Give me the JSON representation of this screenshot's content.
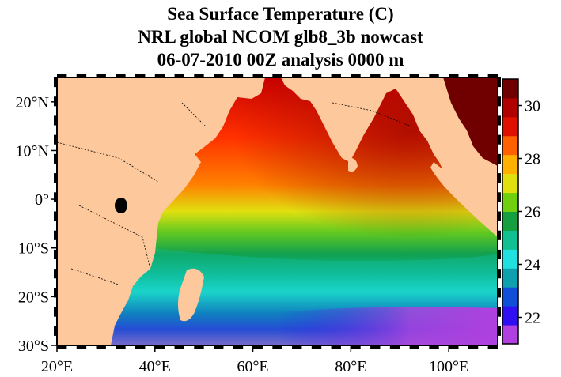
{
  "title": {
    "line1": "Sea Surface Temperature (C)",
    "line2": "NRL global NCOM glb8_3b   nowcast",
    "line3": "06-07-2010 00Z analysis   0000 m"
  },
  "map": {
    "region": "Indian Ocean",
    "lon_range": [
      20,
      110
    ],
    "lat_range": [
      -30,
      25
    ],
    "lon_ticks": [
      "20°E",
      "40°E",
      "60°E",
      "80°E",
      "100°E"
    ],
    "lon_tick_values": [
      20,
      40,
      60,
      80,
      100
    ],
    "lat_ticks": [
      "20°N",
      "10°N",
      "0°",
      "10°S",
      "20°S",
      "30°S"
    ],
    "lat_tick_values": [
      20,
      10,
      0,
      -10,
      -20,
      -30
    ],
    "land_color": "#fdc89c"
  },
  "colorbar": {
    "min": 21,
    "max": 31,
    "tick_labels": [
      "30",
      "28",
      "26",
      "24",
      "22"
    ],
    "tick_values": [
      30,
      28,
      26,
      24,
      22
    ],
    "colors": [
      "#b040e0",
      "#3010f0",
      "#1050d8",
      "#0fa0b0",
      "#20e0e0",
      "#10c090",
      "#14a040",
      "#70d010",
      "#e0e010",
      "#ffb000",
      "#ff6000",
      "#e01000",
      "#b00000",
      "#700000"
    ]
  }
}
